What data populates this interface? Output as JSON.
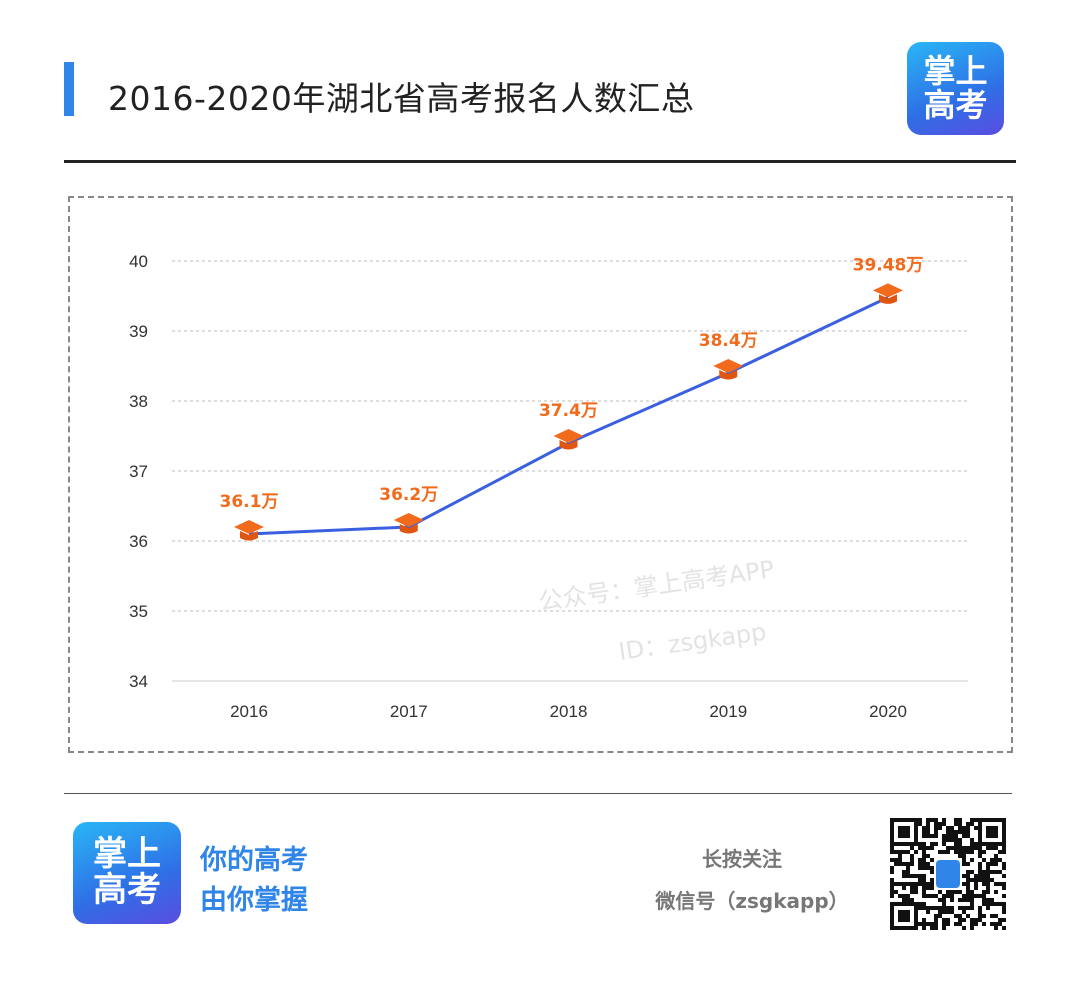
{
  "header": {
    "title": "2016-2020年湖北省高考报名人数汇总",
    "logo_text": [
      "掌上",
      "高考"
    ]
  },
  "watermark": {
    "line1": "公众号：掌上高考APP",
    "line2": "ID：zsgkapp"
  },
  "chart_data": {
    "type": "line",
    "title": "",
    "categories": [
      "2016",
      "2017",
      "2018",
      "2019",
      "2020"
    ],
    "values": [
      36.1,
      36.2,
      37.4,
      38.4,
      39.48
    ],
    "data_labels": [
      "36.1万",
      "36.2万",
      "37.4万",
      "38.4万",
      "39.48万"
    ],
    "ylim": [
      34,
      40
    ],
    "yticks": [
      34,
      35,
      36,
      37,
      38,
      39,
      40
    ],
    "grid": true,
    "marker": "graduation-cap-icon",
    "colors": {
      "line": "#3a5fe0",
      "marker": "#f26a1b",
      "label": "#f26a1b"
    }
  },
  "footer": {
    "logo_text": [
      "掌上",
      "高考"
    ],
    "slogan": [
      "你的高考",
      "由你掌握"
    ],
    "follow": "长按关注",
    "wechat": "微信号（zsgkapp）"
  }
}
